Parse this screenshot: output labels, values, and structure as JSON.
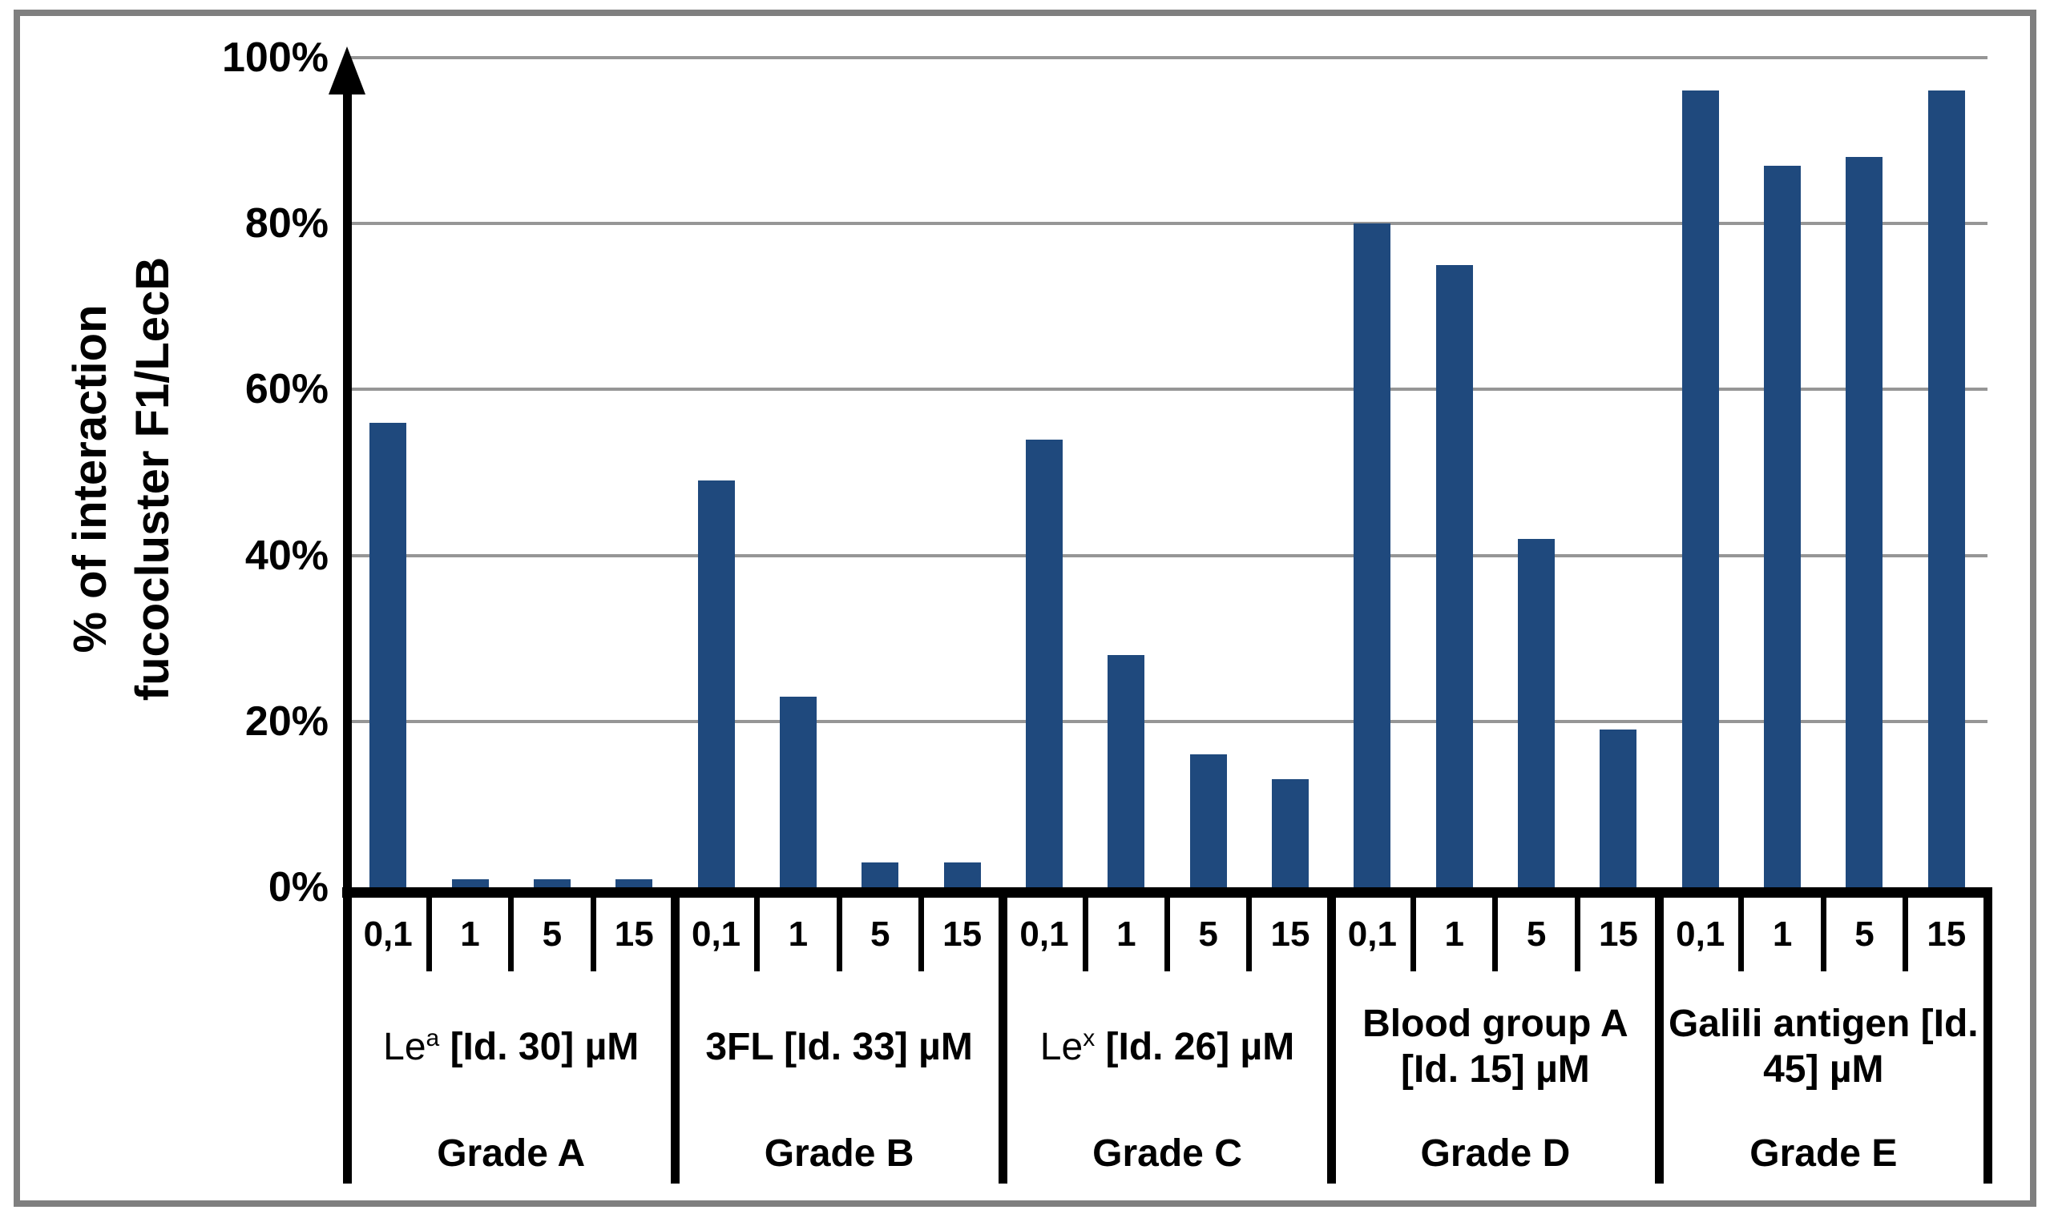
{
  "colors": {
    "bar": "#1F497D",
    "gridline": "#969696",
    "axis": "#000000",
    "frame_border": "#7F7F7F",
    "background": "#FFFFFF"
  },
  "chart_data": {
    "type": "bar",
    "title": "",
    "ylabel_lines": [
      "% of interaction",
      "fucocluster F1/LecB"
    ],
    "ylabel": "% of interaction fucocluster F1/LecB",
    "xlabel": "",
    "ylim": [
      0,
      100
    ],
    "grid": true,
    "legend_position": "none",
    "y_ticks": [
      {
        "value": 100,
        "label": "100%"
      },
      {
        "value": 80,
        "label": "80%"
      },
      {
        "value": 60,
        "label": "60%"
      },
      {
        "value": 40,
        "label": "40%"
      },
      {
        "value": 20,
        "label": "20%"
      },
      {
        "value": 0,
        "label": "0%"
      }
    ],
    "concentrations": [
      "0,1",
      "1",
      "5",
      "15"
    ],
    "concentration_unit": "µM",
    "groups": [
      {
        "grade": "Grade A",
        "compound": {
          "pre": "Le",
          "sup": "a",
          "post": " [Id. 30] µM"
        },
        "values": [
          56,
          1,
          1,
          1
        ]
      },
      {
        "grade": "Grade B",
        "compound": {
          "pre": "",
          "sup": "",
          "post": "3FL [Id. 33] µM"
        },
        "values": [
          49,
          23,
          3,
          3
        ]
      },
      {
        "grade": "Grade C",
        "compound": {
          "pre": "Le",
          "sup": "x",
          "post": " [Id. 26] µM"
        },
        "values": [
          54,
          28,
          16,
          13
        ]
      },
      {
        "grade": "Grade D",
        "compound": {
          "pre": "",
          "sup": "",
          "post": "Blood group A [Id. 15] µM"
        },
        "values": [
          80,
          75,
          42,
          19
        ]
      },
      {
        "grade": "Grade E",
        "compound": {
          "pre": "",
          "sup": "",
          "post": "Galili antigen [Id. 45] µM"
        },
        "values": [
          96,
          87,
          88,
          96
        ]
      }
    ]
  }
}
